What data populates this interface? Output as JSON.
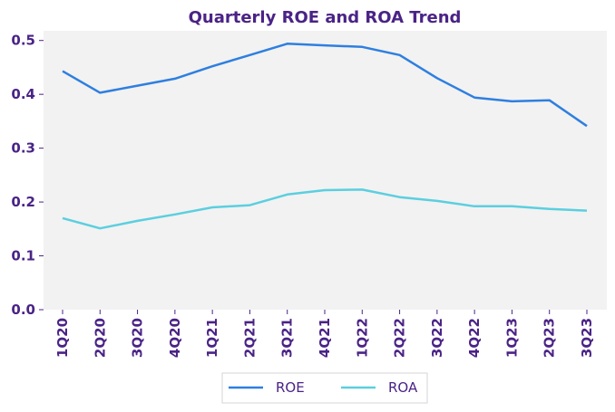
{
  "chart_data": {
    "type": "line",
    "title": "Quarterly ROE and ROA Trend",
    "xlabel": "",
    "ylabel": "",
    "categories": [
      "1Q20",
      "2Q20",
      "3Q20",
      "4Q20",
      "1Q21",
      "2Q21",
      "3Q21",
      "4Q21",
      "1Q22",
      "2Q22",
      "3Q22",
      "4Q22",
      "1Q23",
      "2Q23",
      "3Q23"
    ],
    "series": [
      {
        "name": "ROE",
        "color": "#2e7fe0",
        "values": [
          0.443,
          0.403,
          0.416,
          0.429,
          0.452,
          0.473,
          0.494,
          0.491,
          0.488,
          0.473,
          0.43,
          0.394,
          0.387,
          0.389,
          0.341
        ]
      },
      {
        "name": "ROA",
        "color": "#5bcfdf",
        "values": [
          0.17,
          0.151,
          0.165,
          0.177,
          0.19,
          0.194,
          0.214,
          0.222,
          0.223,
          0.209,
          0.202,
          0.192,
          0.192,
          0.187,
          0.184
        ]
      }
    ],
    "yticks": [
      "0.0",
      "0.1",
      "0.2",
      "0.3",
      "0.4",
      "0.5"
    ],
    "ytick_values": [
      0.0,
      0.1,
      0.2,
      0.3,
      0.4,
      0.5
    ],
    "ylim": [
      0,
      0.518
    ],
    "grid": false,
    "legend_position": "bottom-center",
    "plot_background": "#f2f2f2",
    "text_color": "#4a2386"
  }
}
